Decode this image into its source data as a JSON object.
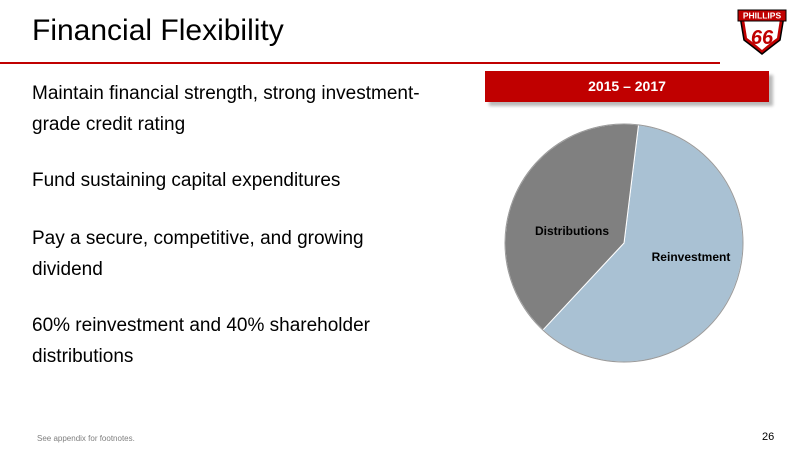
{
  "slide": {
    "title": "Financial Flexibility",
    "bullets": [
      "Maintain financial strength, strong investment-grade credit rating",
      "Fund sustaining capital expenditures",
      "Pay a secure, competitive, and growing dividend",
      "60% reinvestment and 40% shareholder distributions"
    ],
    "period_label": "2015 – 2017",
    "footnote": "See appendix for footnotes.",
    "page_number": "26",
    "logo_text": {
      "top": "PHILLIPS",
      "number": "66"
    }
  },
  "colors": {
    "brand_red": "#c00000",
    "reinvestment": "#a9c1d3",
    "distributions": "#808080"
  },
  "chart_data": {
    "type": "pie",
    "title": "",
    "slices": [
      {
        "label": "Reinvestment",
        "value": 60,
        "color": "#a9c1d3"
      },
      {
        "label": "Distributions",
        "value": 40,
        "color": "#808080"
      }
    ]
  }
}
